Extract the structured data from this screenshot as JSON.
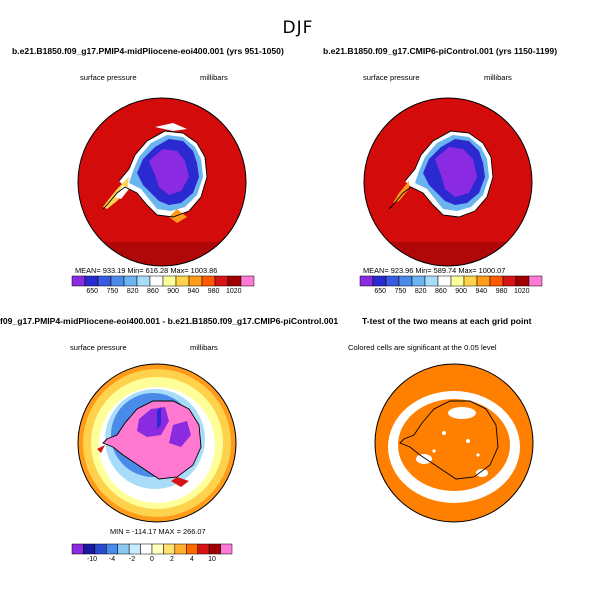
{
  "title": "DJF",
  "panels": [
    {
      "id": "p1",
      "title": "b.e21.B1850.f09_g17.PMIP4-midPliocene-eoi400.001 (yrs 951-1050)",
      "left_label": "surface pressure",
      "right_label": "millibars",
      "stats": "MEAN= 933.19   Min= 616.28   Max= 1003.86",
      "colorbar": {
        "colors": [
          "#8a2be2",
          "#2a2ad0",
          "#3a5ae0",
          "#4a8ae8",
          "#6ab4f0",
          "#a8dcf8",
          "#ffffff",
          "#ffff99",
          "#ffd24d",
          "#ff9a1a",
          "#ff5a00",
          "#d71414",
          "#a00000",
          "#ff7ad6"
        ],
        "labels": [
          "650",
          "750",
          "820",
          "860",
          "900",
          "940",
          "980",
          "1020"
        ]
      }
    },
    {
      "id": "p2",
      "title": "b.e21.B1850.f09_g17.CMIP6-piControl.001 (yrs 1150-1199)",
      "left_label": "surface pressure",
      "right_label": "millibars",
      "stats": "MEAN= 923.96   Min= 589.74   Max= 1000.07",
      "colorbar": {
        "colors": [
          "#8a2be2",
          "#2a2ad0",
          "#3a5ae0",
          "#4a8ae8",
          "#6ab4f0",
          "#a8dcf8",
          "#ffffff",
          "#ffff99",
          "#ffd24d",
          "#ff9a1a",
          "#ff5a00",
          "#d71414",
          "#a00000",
          "#ff7ad6"
        ],
        "labels": [
          "650",
          "750",
          "820",
          "860",
          "900",
          "940",
          "980",
          "1020"
        ]
      }
    },
    {
      "id": "p3",
      "title": "f09_g17.PMIP4-midPliocene-eoi400.001 - b.e21.B1850.f09_g17.CMIP6-piControl.001",
      "left_label": "surface pressure",
      "right_label": "millibars",
      "stats": "MIN = -114.17  MAX = 266.07",
      "colorbar": {
        "colors": [
          "#8a2be2",
          "#1a1aa0",
          "#2a4ad0",
          "#4a8ae8",
          "#8ac8f0",
          "#c8ecff",
          "#ffffff",
          "#ffffc0",
          "#ffe070",
          "#ffb030",
          "#ff6a00",
          "#d71414",
          "#a00000",
          "#ff7ad6"
        ],
        "labels": [
          "-10",
          "-4",
          "-2",
          "0",
          "2",
          "4",
          "10"
        ]
      }
    },
    {
      "id": "p4",
      "title": "T-test of the two means at each grid point",
      "left_label": "Colored cells are significant at the 0.05 level"
    }
  ],
  "colors": {
    "ocean_red": "#d40b0b",
    "ice_blue": "#1e3ee0",
    "ice_purple": "#8a2be2",
    "ttest_orange": "#ff7f00",
    "diff_pink": "#ff79d0"
  }
}
